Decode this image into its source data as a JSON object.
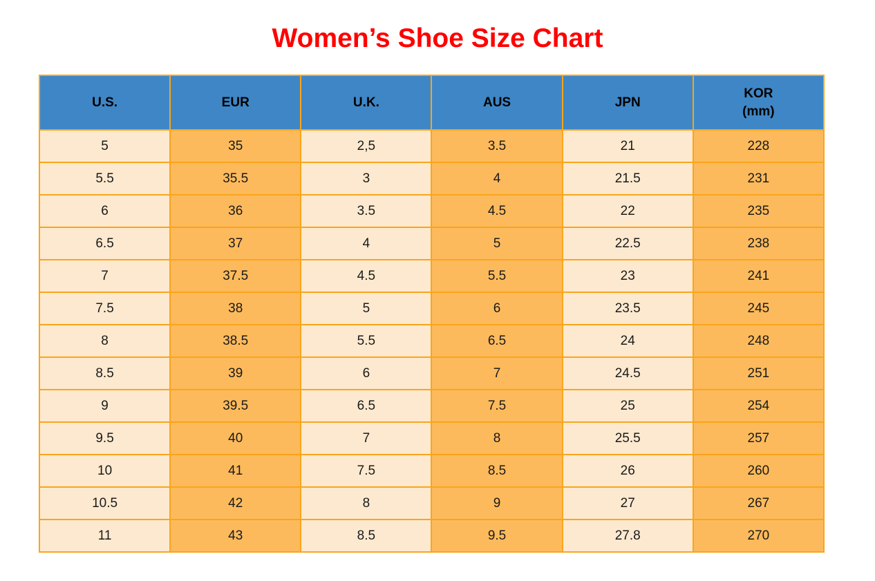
{
  "page": {
    "title": "Women’s Shoe Size Chart"
  },
  "colors": {
    "title": "#ff0000",
    "header_bg": "#3f86c6",
    "header_text": "#000000",
    "cell_light": "#fde9cf",
    "cell_orange": "#fcba5c",
    "border": "#f9a51b",
    "cell_text": "#1a1a1a"
  },
  "chart_data": {
    "type": "table",
    "title": "Women’s Shoe Size Chart",
    "columns": [
      "U.S.",
      "EUR",
      "U.K.",
      "AUS",
      "JPN",
      "KOR\n(mm)"
    ],
    "column_shading": [
      "light",
      "orange",
      "light",
      "orange",
      "light",
      "orange"
    ],
    "rows": [
      [
        "5",
        "35",
        "2,5",
        "3.5",
        "21",
        "228"
      ],
      [
        "5.5",
        "35.5",
        "3",
        "4",
        "21.5",
        "231"
      ],
      [
        "6",
        "36",
        "3.5",
        "4.5",
        "22",
        "235"
      ],
      [
        "6.5",
        "37",
        "4",
        "5",
        "22.5",
        "238"
      ],
      [
        "7",
        "37.5",
        "4.5",
        "5.5",
        "23",
        "241"
      ],
      [
        "7.5",
        "38",
        "5",
        "6",
        "23.5",
        "245"
      ],
      [
        "8",
        "38.5",
        "5.5",
        "6.5",
        "24",
        "248"
      ],
      [
        "8.5",
        "39",
        "6",
        "7",
        "24.5",
        "251"
      ],
      [
        "9",
        "39.5",
        "6.5",
        "7.5",
        "25",
        "254"
      ],
      [
        "9.5",
        "40",
        "7",
        "8",
        "25.5",
        "257"
      ],
      [
        "10",
        "41",
        "7.5",
        "8.5",
        "26",
        "260"
      ],
      [
        "10.5",
        "42",
        "8",
        "9",
        "27",
        "267"
      ],
      [
        "11",
        "43",
        "8.5",
        "9.5",
        "27.8",
        "270"
      ]
    ]
  }
}
